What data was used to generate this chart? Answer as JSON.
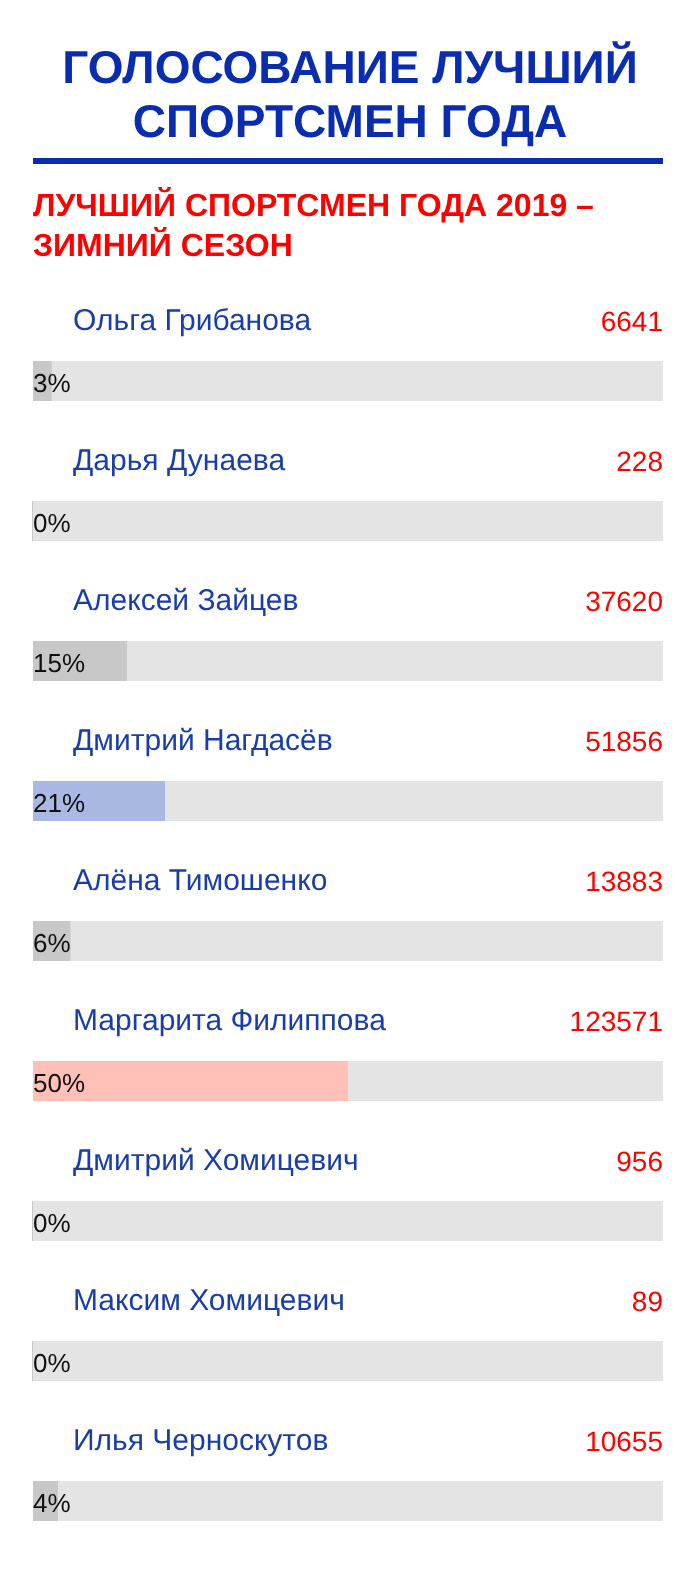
{
  "chart_data": {
    "type": "bar",
    "orientation": "horizontal",
    "stacked": true,
    "title": "ГОЛОСОВАНИЕ ЛУЧШИЙ\nСПОРТСМЕН ГОДА",
    "subtitle": "ЛУЧШИЙ СПОРТСМЕН ГОДА 2019 –\nЗИМНИЙ СЕЗОН",
    "categories": [
      "Ольга Грибанова",
      "Дарья Дунаева",
      "Алексей Зайцев",
      "Дмитрий Нагдасёв",
      "Алёна Тимошенко",
      "Маргарита Филиппова",
      "Дмитрий Хомицевич",
      "Максим Хомицевич",
      "Илья Черноскутов"
    ],
    "series": [
      {
        "colors": [
          "#c8c8c8",
          "#c8c8c8",
          "#c8c8c8",
          "#aab8e4",
          "#c8c8c8",
          "#ffc0b8",
          "#c8c8c8",
          "#c8c8c8",
          "#c8c8c8"
        ],
        "values": [
          3,
          0,
          15,
          21,
          6,
          50,
          0,
          0,
          4
        ],
        "value_labels": [
          "3%",
          "0%",
          "15%",
          "21%",
          "6%",
          "50%",
          "0%",
          "0%",
          "4%"
        ]
      },
      {
        "color": "#e4e4e4",
        "values": [
          97,
          100,
          85,
          79,
          94,
          50,
          100,
          100,
          96
        ]
      }
    ],
    "xlim": [
      0,
      100
    ],
    "tick_labels": false,
    "grid": false,
    "annotations": [
      "6641",
      "228",
      "37620",
      "51856",
      "13883",
      "123571",
      "956",
      "89",
      "10655"
    ]
  }
}
